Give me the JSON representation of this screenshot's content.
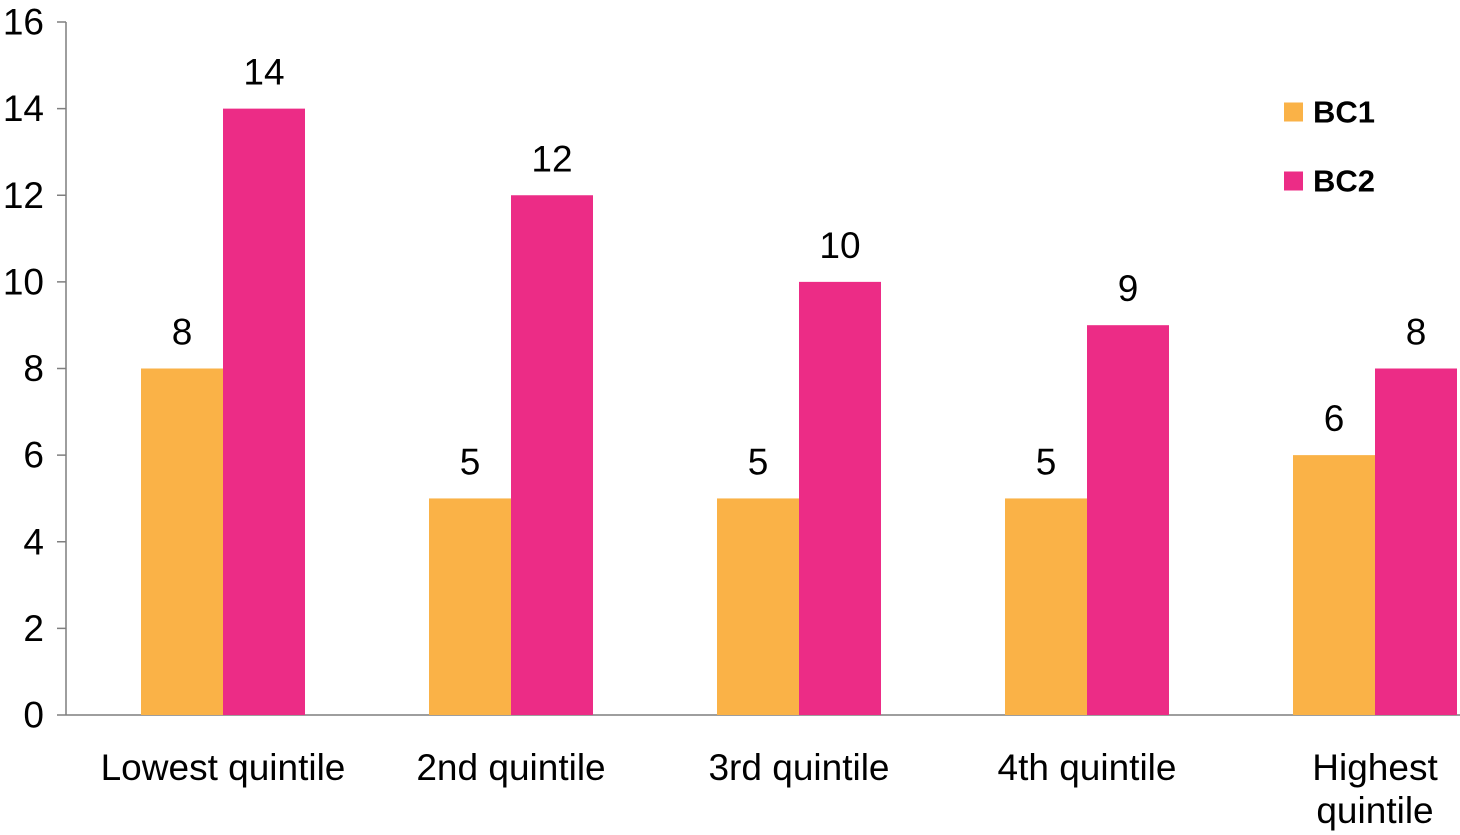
{
  "chart_data": {
    "type": "bar",
    "categories": [
      [
        "Lowest quintile"
      ],
      [
        "2nd quintile"
      ],
      [
        "3rd quintile"
      ],
      [
        "4th quintile"
      ],
      [
        "Highest",
        "quintile"
      ]
    ],
    "series": [
      {
        "name": "BC1",
        "color": "#FAB247",
        "values": [
          8,
          5,
          5,
          5,
          6
        ]
      },
      {
        "name": "BC2",
        "color": "#EC2C86",
        "values": [
          14,
          12,
          10,
          9,
          8
        ]
      }
    ],
    "ylim": [
      0,
      16
    ],
    "yticks": [
      0,
      2,
      4,
      6,
      8,
      10,
      12,
      14,
      16
    ],
    "xlabel": "",
    "ylabel": "",
    "grid": false,
    "legend_position": "top-right",
    "data_labels": true
  }
}
